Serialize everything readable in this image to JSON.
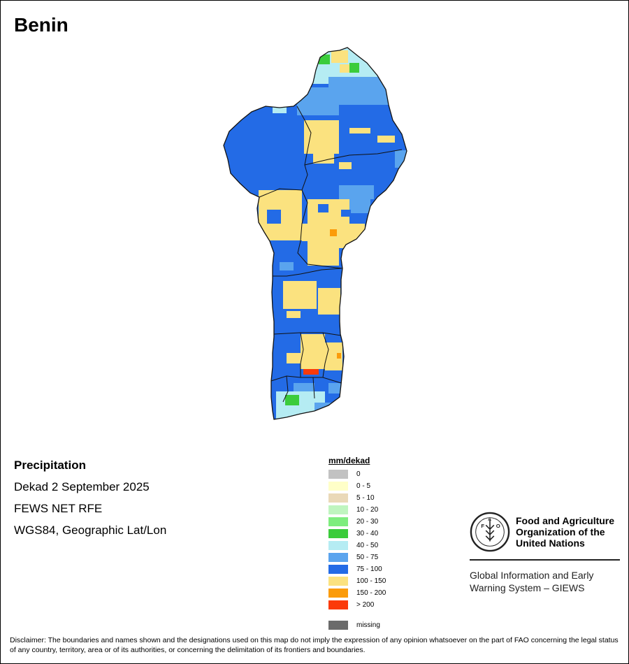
{
  "title": "Benin",
  "info": {
    "heading": "Precipitation",
    "period": "Dekad 2 September 2025",
    "source": "FEWS NET RFE",
    "projection": "WGS84, Geographic Lat/Lon"
  },
  "legend": {
    "title": "mm/dekad",
    "items": [
      {
        "label": "0",
        "color": "#c2c2c2"
      },
      {
        "label": "0 - 5",
        "color": "#ffffc8"
      },
      {
        "label": "5 - 10",
        "color": "#ead9b8"
      },
      {
        "label": "10 - 20",
        "color": "#bff5bf"
      },
      {
        "label": "20 - 30",
        "color": "#7eed7e"
      },
      {
        "label": "30 - 40",
        "color": "#3bcc3b"
      },
      {
        "label": "40 - 50",
        "color": "#b5ecf3"
      },
      {
        "label": "50 - 75",
        "color": "#5aa4ee"
      },
      {
        "label": "75 - 100",
        "color": "#236be6"
      },
      {
        "label": "100 - 150",
        "color": "#fbe27f"
      },
      {
        "label": "150 - 200",
        "color": "#fb9b0a"
      },
      {
        "label": "> 200",
        "color": "#fb3a0a"
      }
    ],
    "missing": {
      "label": "missing",
      "color": "#6b6b6b"
    }
  },
  "organization": {
    "name": "Food and Agriculture Organization of the United Nations",
    "emblem_text": "FAO",
    "emblem_motto": "FIAT PANIS",
    "system": "Global Information and Early Warning System – GIEWS"
  },
  "disclaimer": "Disclaimer: The boundaries and names shown and the designations used on this map do not imply the expression of any opinion whatsoever on the part of FAO concerning the legal status of any country, territory, area or of its authorities, or concerning the delimitation of its frontiers and boundaries."
}
